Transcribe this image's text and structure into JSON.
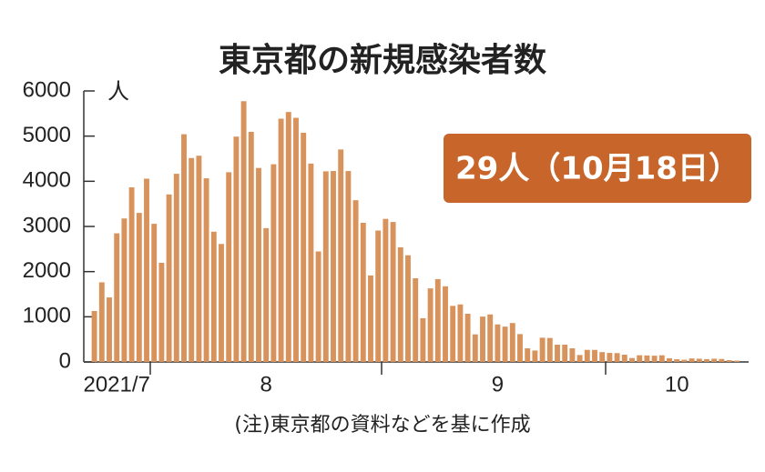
{
  "chart_data": {
    "type": "bar",
    "title": "東京都の新規感染者数",
    "y_unit": "人",
    "annotation": "29人（10月18日）",
    "note": "(注)東京都の資料などを基に作成",
    "color": "#d8935c",
    "ylim": [
      0,
      6000
    ],
    "yticks": [
      0,
      1000,
      2000,
      3000,
      4000,
      5000,
      6000
    ],
    "categories": [
      null,
      null,
      null,
      "2021/7",
      null,
      null,
      null,
      null,
      null,
      null,
      null,
      null,
      null,
      null,
      null,
      null,
      null,
      null,
      null,
      null,
      null,
      null,
      null,
      "8",
      null,
      null,
      null,
      null,
      null,
      null,
      null,
      null,
      null,
      null,
      null,
      null,
      null,
      null,
      null,
      null,
      null,
      null,
      null,
      null,
      null,
      null,
      null,
      null,
      null,
      null,
      null,
      null,
      null,
      null,
      "9",
      null,
      null,
      null,
      null,
      null,
      null,
      null,
      null,
      null,
      null,
      null,
      null,
      null,
      null,
      null,
      null,
      null,
      null,
      null,
      null,
      null,
      null,
      null,
      "10",
      null,
      null,
      null,
      null,
      null,
      null,
      null,
      null
    ],
    "values": [
      1128,
      1763,
      1429,
      2848,
      3177,
      3865,
      3300,
      4058,
      3058,
      2195,
      3709,
      4166,
      5042,
      4515,
      4566,
      4066,
      2884,
      2612,
      4200,
      4989,
      5773,
      5094,
      4295,
      2962,
      4377,
      5386,
      5534,
      5405,
      5074,
      4392,
      2447,
      4220,
      4228,
      4704,
      4227,
      3581,
      3081,
      1915,
      2909,
      3168,
      3099,
      2539,
      2362,
      1853,
      968,
      1629,
      1834,
      1675,
      1242,
      1273,
      1067,
      611,
      1004,
      1052,
      831,
      782,
      862,
      617,
      302,
      253,
      537,
      531,
      382,
      383,
      302,
      154,
      267,
      267,
      218,
      200,
      196,
      161,
      87,
      149,
      144,
      138,
      148,
      82,
      60,
      49,
      77,
      72,
      62,
      72,
      66,
      40,
      29
    ]
  }
}
